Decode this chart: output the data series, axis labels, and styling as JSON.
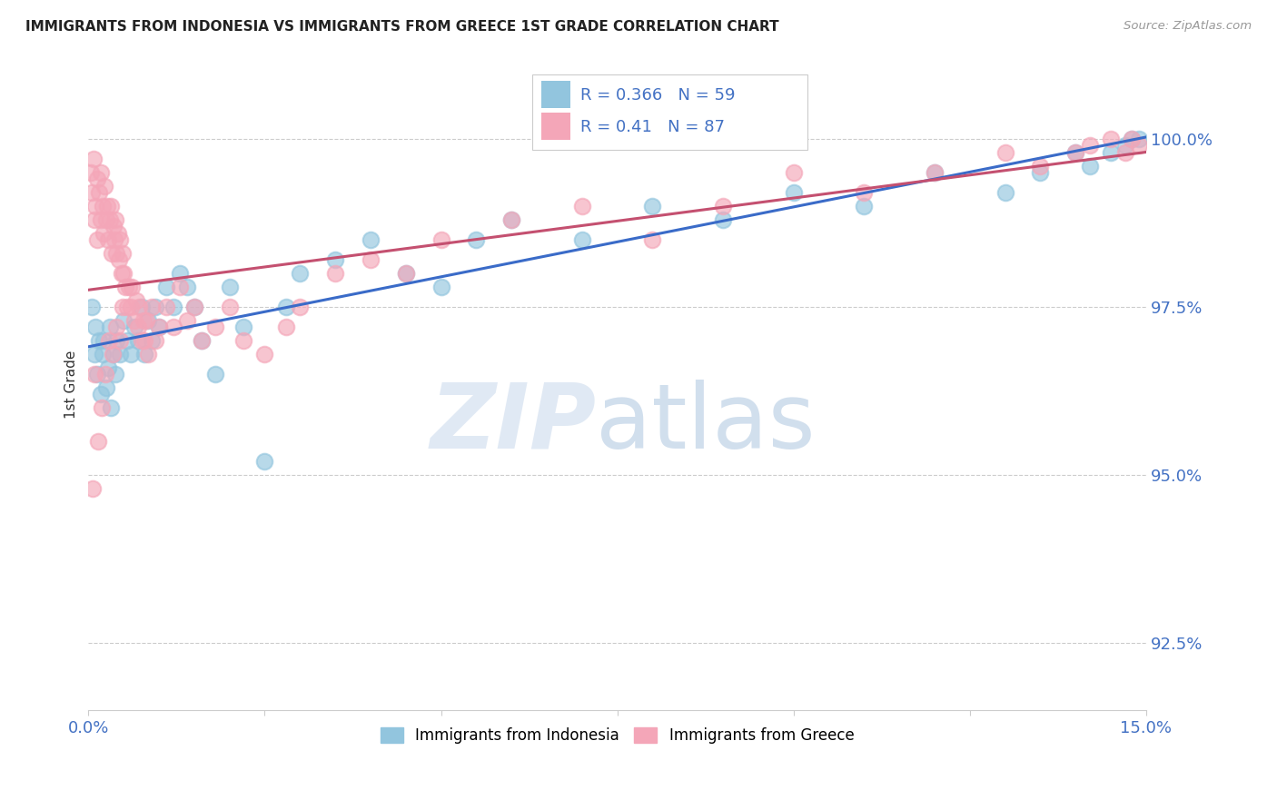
{
  "title": "IMMIGRANTS FROM INDONESIA VS IMMIGRANTS FROM GREECE 1ST GRADE CORRELATION CHART",
  "source": "Source: ZipAtlas.com",
  "ylabel": "1st Grade",
  "ytick_labels": [
    "92.5%",
    "95.0%",
    "97.5%",
    "100.0%"
  ],
  "ytick_values": [
    92.5,
    95.0,
    97.5,
    100.0
  ],
  "xmin": 0.0,
  "xmax": 15.0,
  "ymin": 91.5,
  "ymax": 101.2,
  "legend_indonesia": "Immigrants from Indonesia",
  "legend_greece": "Immigrants from Greece",
  "R_indonesia": 0.366,
  "N_indonesia": 59,
  "R_greece": 0.41,
  "N_greece": 87,
  "color_indonesia": "#92C5DE",
  "color_greece": "#F4A6B8",
  "trendline_indonesia": "#3A6BC8",
  "trendline_greece": "#C45070",
  "indonesia_x": [
    0.05,
    0.08,
    0.1,
    0.12,
    0.15,
    0.18,
    0.2,
    0.22,
    0.25,
    0.28,
    0.3,
    0.32,
    0.35,
    0.38,
    0.4,
    0.45,
    0.5,
    0.55,
    0.6,
    0.65,
    0.7,
    0.75,
    0.8,
    0.85,
    0.9,
    0.95,
    1.0,
    1.1,
    1.2,
    1.3,
    1.4,
    1.5,
    1.6,
    1.8,
    2.0,
    2.2,
    2.5,
    2.8,
    3.0,
    3.5,
    4.0,
    4.5,
    5.0,
    5.5,
    6.0,
    7.0,
    8.0,
    9.0,
    10.0,
    11.0,
    12.0,
    13.0,
    13.5,
    14.0,
    14.2,
    14.5,
    14.7,
    14.8,
    14.9
  ],
  "indonesia_y": [
    97.5,
    96.8,
    97.2,
    96.5,
    97.0,
    96.2,
    96.8,
    97.0,
    96.3,
    96.6,
    97.2,
    96.0,
    96.8,
    96.5,
    97.0,
    96.8,
    97.3,
    97.0,
    96.8,
    97.2,
    97.0,
    97.5,
    96.8,
    97.3,
    97.0,
    97.5,
    97.2,
    97.8,
    97.5,
    98.0,
    97.8,
    97.5,
    97.0,
    96.5,
    97.8,
    97.2,
    95.2,
    97.5,
    98.0,
    98.2,
    98.5,
    98.0,
    97.8,
    98.5,
    98.8,
    98.5,
    99.0,
    98.8,
    99.2,
    99.0,
    99.5,
    99.2,
    99.5,
    99.8,
    99.6,
    99.8,
    99.9,
    100.0,
    100.0
  ],
  "greece_x": [
    0.03,
    0.05,
    0.07,
    0.08,
    0.1,
    0.12,
    0.13,
    0.15,
    0.17,
    0.18,
    0.2,
    0.22,
    0.23,
    0.25,
    0.27,
    0.28,
    0.3,
    0.32,
    0.33,
    0.35,
    0.37,
    0.38,
    0.4,
    0.42,
    0.43,
    0.45,
    0.47,
    0.48,
    0.5,
    0.52,
    0.55,
    0.57,
    0.6,
    0.62,
    0.65,
    0.68,
    0.7,
    0.72,
    0.75,
    0.78,
    0.8,
    0.82,
    0.85,
    0.9,
    0.95,
    1.0,
    1.1,
    1.2,
    1.3,
    1.4,
    1.5,
    1.6,
    1.8,
    2.0,
    2.2,
    2.5,
    2.8,
    3.0,
    3.5,
    4.0,
    4.5,
    5.0,
    6.0,
    7.0,
    8.0,
    9.0,
    10.0,
    11.0,
    12.0,
    13.0,
    13.5,
    14.0,
    14.2,
    14.5,
    14.7,
    14.8,
    14.9,
    0.06,
    0.09,
    0.14,
    0.19,
    0.24,
    0.29,
    0.34,
    0.39,
    0.44,
    0.49
  ],
  "greece_y": [
    99.5,
    99.2,
    99.7,
    98.8,
    99.0,
    99.4,
    98.5,
    99.2,
    98.8,
    99.5,
    99.0,
    98.6,
    99.3,
    98.8,
    99.0,
    98.5,
    98.8,
    99.0,
    98.3,
    98.7,
    98.5,
    98.8,
    98.3,
    98.6,
    98.2,
    98.5,
    98.0,
    98.3,
    98.0,
    97.8,
    97.5,
    97.8,
    97.5,
    97.8,
    97.3,
    97.6,
    97.2,
    97.5,
    97.0,
    97.3,
    97.0,
    97.3,
    96.8,
    97.5,
    97.0,
    97.2,
    97.5,
    97.2,
    97.8,
    97.3,
    97.5,
    97.0,
    97.2,
    97.5,
    97.0,
    96.8,
    97.2,
    97.5,
    98.0,
    98.2,
    98.0,
    98.5,
    98.8,
    99.0,
    98.5,
    99.0,
    99.5,
    99.2,
    99.5,
    99.8,
    99.6,
    99.8,
    99.9,
    100.0,
    99.8,
    100.0,
    99.9,
    94.8,
    96.5,
    95.5,
    96.0,
    96.5,
    97.0,
    96.8,
    97.2,
    97.0,
    97.5
  ]
}
